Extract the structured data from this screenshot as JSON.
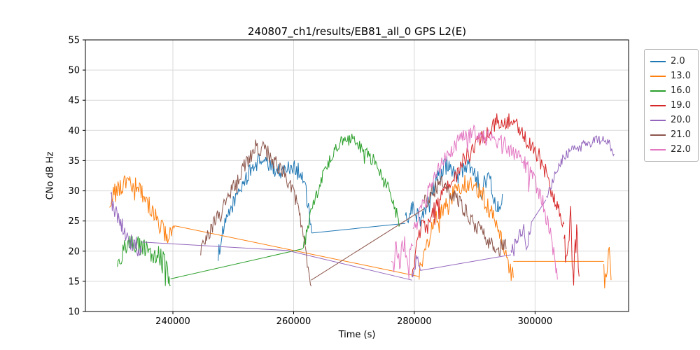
{
  "chart_data": {
    "type": "line",
    "title": "240807_ch1/results/EB81_all_0 GPS L2(E)",
    "xlabel": "Time (s)",
    "ylabel": "CNo dB Hz",
    "xlim": [
      225500,
      315500
    ],
    "ylim": [
      10,
      55
    ],
    "xticks": [
      240000,
      260000,
      280000,
      300000
    ],
    "yticks": [
      10,
      15,
      20,
      25,
      30,
      35,
      40,
      45,
      50,
      55
    ],
    "grid": true,
    "grid_color": "#d9d9d9",
    "legend_position": "outside-right",
    "series": [
      {
        "name": "2.0",
        "color": "#1f77b4",
        "segments": [
          {
            "noise": 1.3,
            "points": [
              [
                247500,
                19.5
              ],
              [
                248500,
                24
              ],
              [
                250000,
                28
              ],
              [
                251500,
                31
              ],
              [
                253000,
                33.5
              ],
              [
                254500,
                35.3
              ],
              [
                256000,
                34.2
              ],
              [
                257500,
                33.2
              ],
              [
                259000,
                33.8
              ],
              [
                260500,
                34
              ],
              [
                261800,
                31.5
              ],
              [
                263000,
                23
              ]
            ]
          },
          {
            "noise": 0,
            "points": [
              [
                263000,
                23
              ],
              [
                278500,
                24.6
              ]
            ]
          },
          {
            "noise": 1.6,
            "points": [
              [
                278500,
                24.6
              ],
              [
                279500,
                27
              ],
              [
                281000,
                25.5
              ],
              [
                282500,
                29
              ],
              [
                284000,
                32.5
              ],
              [
                285500,
                34.5
              ],
              [
                287000,
                32
              ],
              [
                288500,
                34.5
              ],
              [
                290000,
                33
              ],
              [
                291200,
                30
              ],
              [
                292400,
                33
              ],
              [
                293600,
                27
              ],
              [
                294600,
                29.5
              ]
            ]
          }
        ]
      },
      {
        "name": "13.0",
        "color": "#ff7f0e",
        "segments": [
          {
            "noise": 1.6,
            "points": [
              [
                229500,
                28.5
              ],
              [
                230500,
                30
              ],
              [
                231800,
                31
              ],
              [
                233000,
                31.5
              ],
              [
                234200,
                30.5
              ],
              [
                235400,
                29
              ],
              [
                236600,
                26.5
              ],
              [
                237800,
                24.5
              ],
              [
                239000,
                22
              ],
              [
                240300,
                24.2
              ]
            ]
          },
          {
            "noise": 0,
            "points": [
              [
                240300,
                24.2
              ],
              [
                280800,
                15.8
              ]
            ]
          },
          {
            "noise": 1.6,
            "points": [
              [
                280800,
                16.5
              ],
              [
                282000,
                21
              ],
              [
                283500,
                25
              ],
              [
                285000,
                27.5
              ],
              [
                286500,
                29.5
              ],
              [
                288000,
                31
              ],
              [
                289500,
                31.5
              ],
              [
                291000,
                30
              ],
              [
                292300,
                27
              ],
              [
                293600,
                24.5
              ],
              [
                294800,
                21
              ],
              [
                295800,
                17
              ],
              [
                296400,
                15.6
              ]
            ]
          },
          {
            "noise": 0,
            "points": [
              [
                296400,
                18.3
              ],
              [
                311400,
                18.3
              ]
            ]
          },
          {
            "noise": 1.4,
            "points": [
              [
                311400,
                18.3
              ],
              [
                311800,
                15.6
              ],
              [
                312300,
                20.6
              ],
              [
                312600,
                15.2
              ]
            ]
          }
        ]
      },
      {
        "name": "16.0",
        "color": "#2ca02c",
        "segments": [
          {
            "noise": 1.7,
            "points": [
              [
                230800,
                18.5
              ],
              [
                232000,
                20.5
              ],
              [
                233500,
                21.3
              ],
              [
                235000,
                20.6
              ],
              [
                236500,
                19.8
              ],
              [
                238000,
                19.2
              ],
              [
                239000,
                17
              ],
              [
                239600,
                14.4
              ]
            ]
          },
          {
            "noise": 0,
            "points": [
              [
                239600,
                15.4
              ],
              [
                261600,
                20.4
              ]
            ]
          },
          {
            "noise": 1.1,
            "points": [
              [
                261600,
                20.4
              ],
              [
                262600,
                25
              ],
              [
                263800,
                29.5
              ],
              [
                265200,
                33.5
              ],
              [
                266600,
                36.5
              ],
              [
                268000,
                38.4
              ],
              [
                269400,
                38.6
              ],
              [
                270800,
                37.4
              ],
              [
                272400,
                36
              ],
              [
                274000,
                34
              ],
              [
                275600,
                30.5
              ],
              [
                276800,
                27
              ],
              [
                277600,
                24.3
              ]
            ]
          }
        ]
      },
      {
        "name": "19.0",
        "color": "#d62728",
        "segments": [
          {
            "noise": 1.5,
            "points": [
              [
                279600,
                15.8
              ],
              [
                280400,
                21
              ],
              [
                281200,
                24.5
              ],
              [
                282200,
                23.5
              ],
              [
                283400,
                27
              ],
              [
                285000,
                30.5
              ],
              [
                287000,
                33.5
              ],
              [
                289000,
                36
              ],
              [
                291000,
                38.5
              ],
              [
                292600,
                40.3
              ],
              [
                293800,
                41.5
              ],
              [
                295000,
                41.7
              ],
              [
                296200,
                41.2
              ],
              [
                297600,
                39.8
              ],
              [
                299000,
                38
              ],
              [
                300400,
                36.2
              ],
              [
                301600,
                33.5
              ],
              [
                302800,
                30
              ],
              [
                303800,
                27.5
              ],
              [
                304800,
                24.5
              ]
            ]
          },
          {
            "noise": 2.4,
            "points": [
              [
                304800,
                24
              ],
              [
                305400,
                18
              ],
              [
                305900,
                25.5
              ],
              [
                306400,
                16
              ],
              [
                306900,
                24
              ],
              [
                307300,
                15.8
              ]
            ]
          }
        ]
      },
      {
        "name": "20.0",
        "color": "#9467bd",
        "segments": [
          {
            "noise": 1.6,
            "points": [
              [
                229700,
                28.8
              ],
              [
                230600,
                26.5
              ],
              [
                231600,
                24
              ],
              [
                232700,
                22
              ],
              [
                233800,
                21
              ],
              [
                234800,
                19.8
              ]
            ]
          },
          {
            "noise": 0,
            "points": [
              [
                234800,
                21.5
              ],
              [
                259000,
                20.1
              ],
              [
                279600,
                15.2
              ]
            ]
          },
          {
            "noise": 1.2,
            "points": [
              [
                279600,
                15.4
              ],
              [
                280300,
                18.8
              ],
              [
                281000,
                16.8
              ]
            ]
          },
          {
            "noise": 0,
            "points": [
              [
                281000,
                16.8
              ],
              [
                296000,
                19.4
              ]
            ]
          },
          {
            "noise": 1.3,
            "points": [
              [
                296000,
                19.4
              ],
              [
                297000,
                21.5
              ],
              [
                298000,
                24
              ],
              [
                298700,
                20.8
              ],
              [
                299400,
                24.8
              ]
            ]
          },
          {
            "noise": 0,
            "points": [
              [
                299400,
                24.8
              ],
              [
                301800,
                28.5
              ]
            ]
          },
          {
            "noise": 0.8,
            "points": [
              [
                301800,
                28.5
              ],
              [
                303000,
                32
              ],
              [
                304200,
                34.8
              ],
              [
                305600,
                36.4
              ],
              [
                307200,
                37.2
              ],
              [
                308800,
                37.8
              ],
              [
                310200,
                38.3
              ],
              [
                311400,
                38.6
              ],
              [
                312300,
                37.9
              ],
              [
                313100,
                36.1
              ]
            ]
          }
        ]
      },
      {
        "name": "21.0",
        "color": "#8c564b",
        "segments": [
          {
            "noise": 1.4,
            "points": [
              [
                244600,
                20.5
              ],
              [
                245600,
                22.5
              ],
              [
                246700,
                24.5
              ],
              [
                247800,
                26
              ],
              [
                249000,
                28.5
              ],
              [
                250200,
                31
              ],
              [
                251400,
                33.5
              ],
              [
                252600,
                35.5
              ],
              [
                253700,
                37.3
              ],
              [
                254800,
                37
              ],
              [
                256000,
                35.8
              ],
              [
                257200,
                34.3
              ],
              [
                258400,
                32.8
              ],
              [
                259600,
                31
              ],
              [
                260700,
                27.5
              ],
              [
                261700,
                22.5
              ],
              [
                262400,
                17
              ],
              [
                262900,
                14.2
              ]
            ]
          },
          {
            "noise": 0,
            "points": [
              [
                262900,
                15.2
              ],
              [
                281600,
                27
              ]
            ]
          },
          {
            "noise": 1.7,
            "points": [
              [
                281600,
                28
              ],
              [
                283000,
                30.2
              ],
              [
                284400,
                31.3
              ],
              [
                285800,
                30.2
              ],
              [
                287200,
                28.3
              ],
              [
                288600,
                26.3
              ],
              [
                290000,
                24.5
              ],
              [
                291400,
                22.8
              ],
              [
                292800,
                21.5
              ],
              [
                294200,
                20.8
              ],
              [
                295200,
                20.3
              ]
            ]
          }
        ]
      },
      {
        "name": "22.0",
        "color": "#e377c2",
        "segments": [
          {
            "noise": 2.2,
            "points": [
              [
                276200,
                19.5
              ],
              [
                277000,
                22
              ],
              [
                277700,
                18.5
              ],
              [
                278400,
                22.5
              ],
              [
                279100,
                17.5
              ],
              [
                279800,
                21
              ]
            ]
          },
          {
            "noise": 1.5,
            "points": [
              [
                279800,
                23
              ],
              [
                281200,
                27
              ],
              [
                282800,
                31
              ],
              [
                284400,
                34.5
              ],
              [
                286000,
                36.8
              ],
              [
                287600,
                38.3
              ],
              [
                289200,
                39.3
              ],
              [
                290800,
                39.4
              ],
              [
                292400,
                38.6
              ],
              [
                294000,
                38
              ],
              [
                295600,
                37.2
              ],
              [
                297200,
                35.8
              ],
              [
                298700,
                33.8
              ],
              [
                300100,
                31
              ],
              [
                301300,
                28
              ],
              [
                302300,
                24
              ],
              [
                303100,
                19.5
              ],
              [
                303700,
                15.3
              ]
            ]
          }
        ]
      }
    ]
  }
}
